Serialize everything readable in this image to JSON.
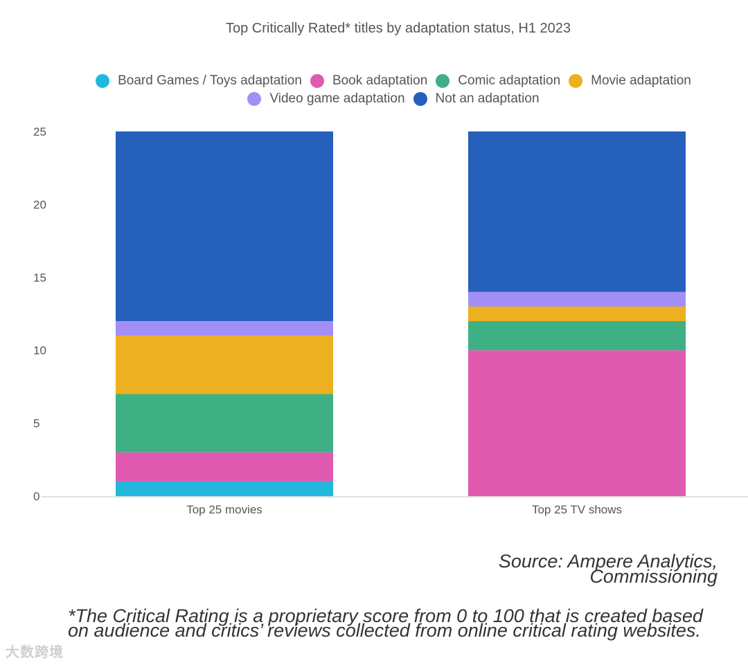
{
  "chart_data": {
    "type": "bar",
    "stacked": true,
    "title": "Top Critically Rated* titles by adaptation status, H1 2023",
    "categories": [
      "Top 25 movies",
      "Top 25 TV shows"
    ],
    "ylim": [
      0,
      25
    ],
    "yticks": [
      "0",
      "5",
      "10",
      "15",
      "20",
      "25"
    ],
    "series": [
      {
        "name": "Board Games / Toys adaptation",
        "color": "#22b8dd",
        "values": [
          1,
          0
        ]
      },
      {
        "name": "Book adaptation",
        "color": "#e05ab0",
        "values": [
          2,
          10
        ]
      },
      {
        "name": "Comic adaptation",
        "color": "#3faf84",
        "values": [
          4,
          2
        ]
      },
      {
        "name": "Movie adaptation",
        "color": "#ecb020",
        "values": [
          4,
          1
        ]
      },
      {
        "name": "Video game adaptation",
        "color": "#a38ef8",
        "values": [
          1,
          1
        ]
      },
      {
        "name": "Not an adaptation",
        "color": "#2560bd",
        "values": [
          13,
          11
        ]
      }
    ]
  },
  "source": {
    "line1": "Source: Ampere Analytics,",
    "line2": "Commissioning"
  },
  "footnote": "*The Critical Rating is a proprietary score from 0 to 100 that is created based on audience and critics’ reviews collected from online critical rating websites.",
  "watermark": "大数跨境"
}
